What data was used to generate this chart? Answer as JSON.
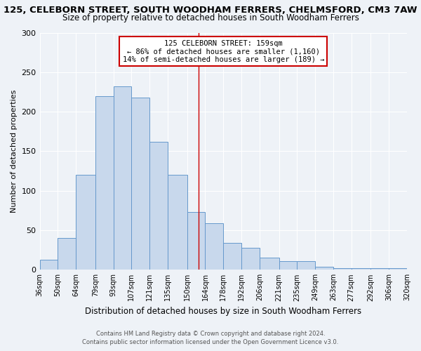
{
  "title": "125, CELEBORN STREET, SOUTH WOODHAM FERRERS, CHELMSFORD, CM3 7AW",
  "subtitle": "Size of property relative to detached houses in South Woodham Ferrers",
  "xlabel": "Distribution of detached houses by size in South Woodham Ferrers",
  "ylabel": "Number of detached properties",
  "bin_edges": [
    36,
    50,
    64,
    79,
    93,
    107,
    121,
    135,
    150,
    164,
    178,
    192,
    206,
    221,
    235,
    249,
    263,
    277,
    292,
    306,
    320
  ],
  "counts": [
    13,
    40,
    120,
    220,
    232,
    218,
    162,
    120,
    73,
    59,
    34,
    28,
    15,
    11,
    11,
    4,
    2,
    2,
    2,
    2
  ],
  "bar_color": "#c8d8ec",
  "bar_edge_color": "#6699cc",
  "property_line_x": 159,
  "property_line_color": "#cc0000",
  "annotation_title": "125 CELEBORN STREET: 159sqm",
  "annotation_line1": "← 86% of detached houses are smaller (1,160)",
  "annotation_line2": "14% of semi-detached houses are larger (189) →",
  "annotation_box_color": "#ffffff",
  "annotation_box_edge": "#cc0000",
  "footnote1": "Contains HM Land Registry data © Crown copyright and database right 2024.",
  "footnote2": "Contains public sector information licensed under the Open Government Licence v3.0.",
  "ylim": [
    0,
    300
  ],
  "background_color": "#eef2f7",
  "grid_color": "#ffffff",
  "tick_labels": [
    "36sqm",
    "50sqm",
    "64sqm",
    "79sqm",
    "93sqm",
    "107sqm",
    "121sqm",
    "135sqm",
    "150sqm",
    "164sqm",
    "178sqm",
    "192sqm",
    "206sqm",
    "221sqm",
    "235sqm",
    "249sqm",
    "263sqm",
    "277sqm",
    "292sqm",
    "306sqm",
    "320sqm"
  ]
}
